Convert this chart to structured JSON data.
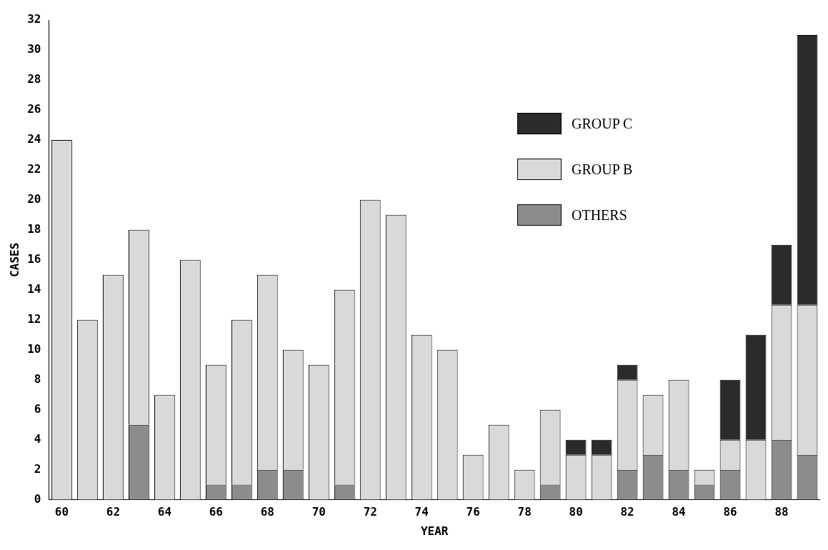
{
  "chart_data": {
    "type": "bar",
    "stacked": true,
    "xlabel": "YEAR",
    "ylabel": "CASES",
    "categories": [
      "60",
      null,
      "62",
      null,
      "64",
      null,
      "66",
      null,
      "68",
      null,
      "70",
      null,
      "72",
      null,
      "74",
      null,
      "76",
      null,
      "78",
      null,
      "80",
      null,
      "82",
      null,
      "84",
      null,
      "86",
      null,
      "88",
      null
    ],
    "series": [
      {
        "name": "OTHERS",
        "color": "#8c8c8c",
        "values": [
          0,
          0,
          0,
          5,
          0,
          0,
          1,
          1,
          2,
          2,
          0,
          1,
          0,
          0,
          0,
          0,
          0,
          0,
          0,
          1,
          0,
          0,
          2,
          3,
          2,
          1,
          2,
          0,
          4,
          3
        ]
      },
      {
        "name": "GROUP B",
        "color": "#d9d9d9",
        "values": [
          24,
          12,
          15,
          13,
          7,
          16,
          8,
          11,
          13,
          8,
          9,
          13,
          20,
          19,
          11,
          10,
          3,
          5,
          2,
          5,
          3,
          3,
          6,
          4,
          6,
          1,
          2,
          4,
          9,
          10
        ]
      },
      {
        "name": "GROUP C",
        "color": "#2b2b2b",
        "values": [
          0,
          0,
          0,
          0,
          0,
          0,
          0,
          0,
          0,
          0,
          0,
          0,
          0,
          0,
          0,
          0,
          0,
          0,
          0,
          0,
          1,
          1,
          1,
          0,
          0,
          0,
          4,
          7,
          4,
          18
        ]
      }
    ],
    "ylim": [
      0,
      32
    ],
    "yticks": [
      0,
      2,
      4,
      6,
      8,
      10,
      12,
      14,
      16,
      18,
      20,
      22,
      24,
      26,
      28,
      30,
      32
    ],
    "grid": false,
    "legend": "top right"
  }
}
